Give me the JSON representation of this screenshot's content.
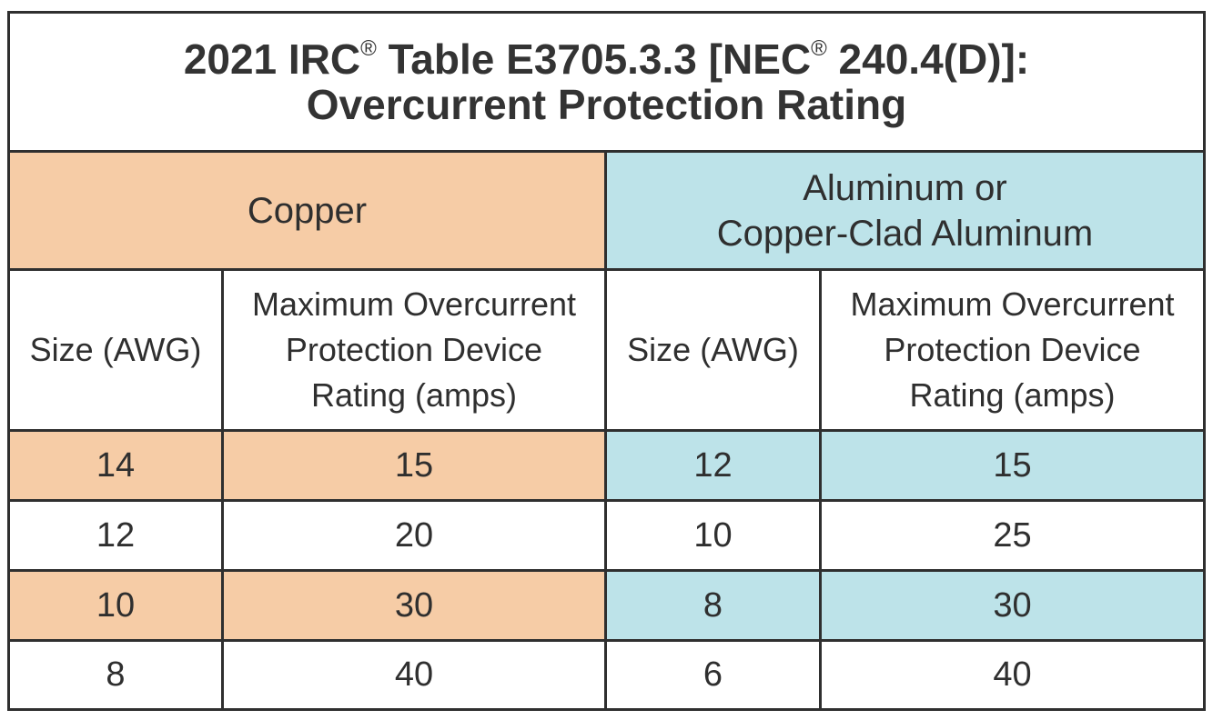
{
  "title": {
    "line1_main": "2021 IRC",
    "line1_reg1": "®",
    "line1_mid": " Table E3705.3.3 [NEC",
    "line1_reg2": "®",
    "line1_end": " 240.4(D)]:",
    "line2": "Overcurrent Protection Rating"
  },
  "groups": {
    "copper": "Copper",
    "aluminum_line1": "Aluminum or",
    "aluminum_line2": "Copper-Clad Aluminum"
  },
  "headers": {
    "size": "Size (AWG)",
    "rating_line1": "Maximum Overcurrent",
    "rating_line2": "Protection Device",
    "rating_line3": "Rating (amps)"
  },
  "rows": [
    {
      "cu_size": "14",
      "cu_rating": "15",
      "al_size": "12",
      "al_rating": "15",
      "shaded": true
    },
    {
      "cu_size": "12",
      "cu_rating": "20",
      "al_size": "10",
      "al_rating": "25",
      "shaded": false
    },
    {
      "cu_size": "10",
      "cu_rating": "30",
      "al_size": "8",
      "al_rating": "30",
      "shaded": true
    },
    {
      "cu_size": "8",
      "cu_rating": "40",
      "al_size": "6",
      "al_rating": "40",
      "shaded": false
    }
  ],
  "colors": {
    "copper": "#f6cca6",
    "aluminum": "#bde3e9",
    "border": "#2f2f2f"
  }
}
